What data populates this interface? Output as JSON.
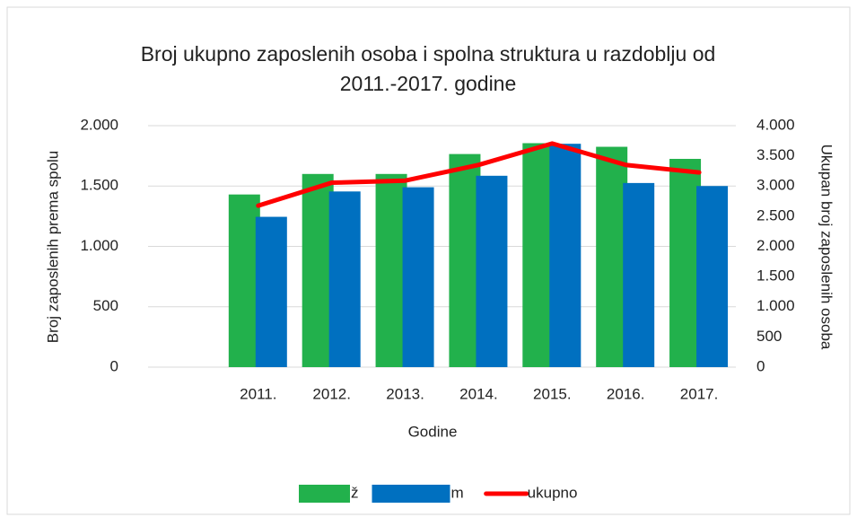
{
  "chart_data": {
    "type": "bar_line",
    "title": [
      "Broj ukupno zaposlenih osoba i spolna struktura u razdoblju od",
      "2011.-2017. godine"
    ],
    "x_label": "Godine",
    "y_label": "Broj zaposlenih prema spolu",
    "y2_label": "Ukupan broj zaposlenih osoba",
    "categories": [
      null,
      "2011.",
      "2012.",
      "2013.",
      "2014.",
      "2015.",
      "2016.",
      "2017."
    ],
    "series": [
      {
        "name": "ž",
        "type": "bar",
        "color": "#22b14c",
        "values": [
          null,
          1430,
          1600,
          1600,
          1765,
          1855,
          1825,
          1725
        ]
      },
      {
        "name": "m",
        "type": "bar",
        "color": "#0070c0",
        "values": [
          null,
          1245,
          1455,
          1490,
          1585,
          1850,
          1525,
          1500
        ]
      },
      {
        "name": "ukupno",
        "type": "line",
        "axis": "y2",
        "color": "#ff0000",
        "values": [
          null,
          2675,
          3055,
          3090,
          3350,
          3705,
          3350,
          3225
        ]
      }
    ],
    "ylim": [
      0,
      2000
    ],
    "yticks": [
      0,
      500,
      {
        "value": 1000,
        "label": "1.000"
      },
      {
        "value": 1500,
        "label": "1.500"
      },
      {
        "value": 2000,
        "label": "2.000"
      }
    ],
    "y2lim": [
      0,
      4000
    ],
    "y2ticks": [
      0,
      500,
      {
        "value": 1000,
        "label": "1.000"
      },
      {
        "value": 1500,
        "label": "1.500"
      },
      {
        "value": 2000,
        "label": "2.000"
      },
      {
        "value": 2500,
        "label": "2.500"
      },
      {
        "value": 3000,
        "label": "3.000"
      },
      {
        "value": 3500,
        "label": "3.500"
      },
      {
        "value": 4000,
        "label": "4.000"
      }
    ],
    "grid": true,
    "legend": "bottom"
  }
}
